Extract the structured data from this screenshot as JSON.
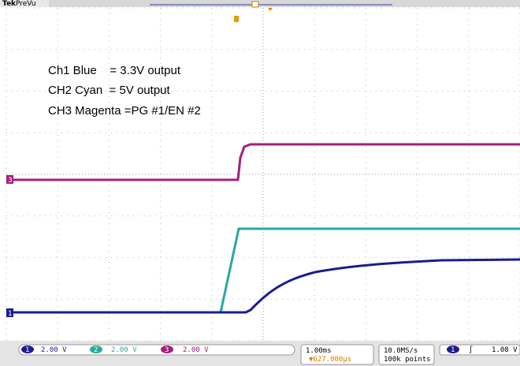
{
  "header": {
    "brand": "Tek",
    "mode": "PreVu"
  },
  "annotations": [
    "Ch1 Blue    = 3.3V output",
    "CH2 Cyan  = 5V output",
    "CH3 Magenta =PG #1/EN #2"
  ],
  "markers": {
    "ch3": "3",
    "ch1": "1"
  },
  "channels": [
    {
      "number": "1",
      "scale": "2.00 V"
    },
    {
      "number": "2",
      "scale": "2.00 V"
    },
    {
      "number": "3",
      "scale": "2.00 V"
    }
  ],
  "timebase": {
    "scale": "1.00ms",
    "position": "▼627.000µs"
  },
  "acquisition": {
    "rate": "10.0MS/s",
    "points": "100k points"
  },
  "trigger": {
    "source": "1",
    "level": "1.08 V"
  }
}
